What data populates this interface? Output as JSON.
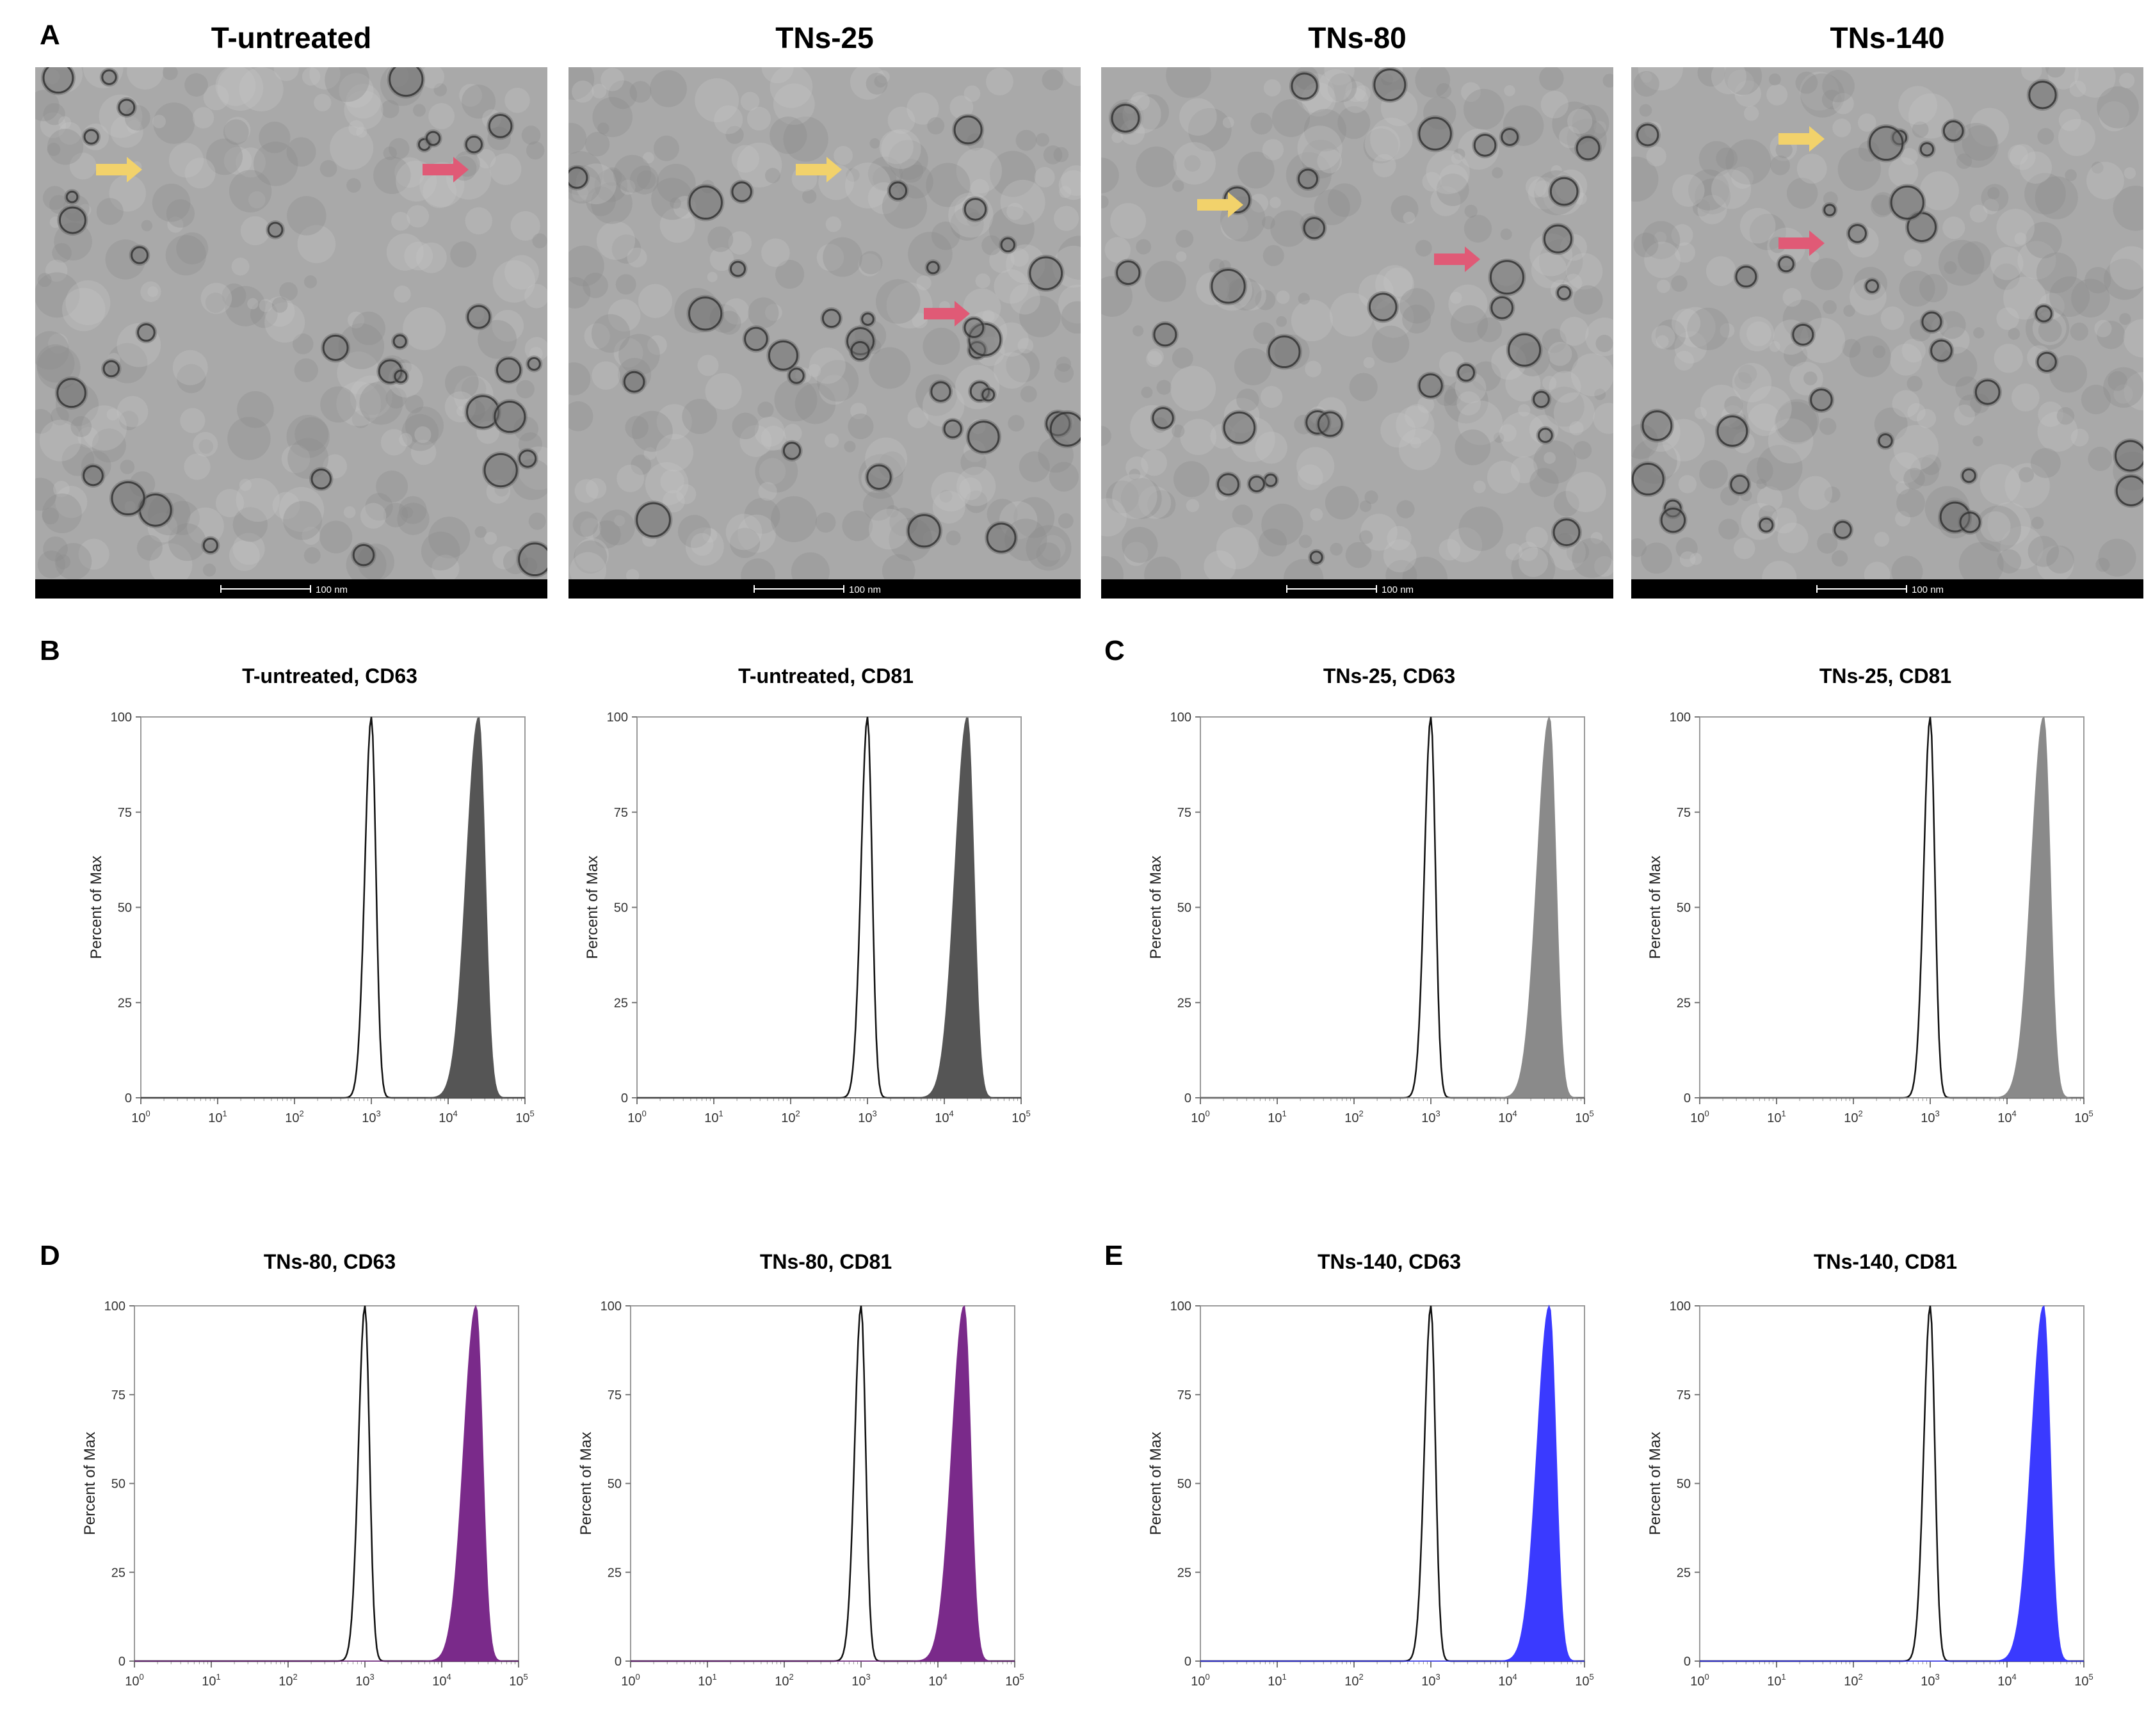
{
  "panel_letters": [
    "A",
    "B",
    "C",
    "D",
    "E"
  ],
  "tem": {
    "scale_label": "100 nm",
    "arrow_colors": {
      "yellow": "#f2d26b",
      "pink": "#e05a76"
    },
    "panels": [
      {
        "title": "T-untreated"
      },
      {
        "title": "TNs-25"
      },
      {
        "title": "TNs-80"
      },
      {
        "title": "TNs-140"
      }
    ]
  },
  "chart_data": [
    {
      "type": "area",
      "title": "T-untreated, CD63",
      "ylabel": "Percent of Max",
      "x_scale": "log",
      "xlim": [
        1,
        100000
      ],
      "ylim": [
        0,
        100
      ],
      "yticks": [
        0,
        25,
        50,
        75,
        100
      ],
      "xticks": [
        "10^0",
        "10^1",
        "10^2",
        "10^3",
        "10^4",
        "10^5"
      ],
      "series": [
        {
          "role": "control",
          "peak": 1000,
          "fill": "none"
        },
        {
          "role": "sample",
          "peak": 25000,
          "fill": "#555555"
        }
      ]
    },
    {
      "type": "area",
      "title": "T-untreated, CD81",
      "ylabel": "Percent of Max",
      "x_scale": "log",
      "xlim": [
        1,
        100000
      ],
      "ylim": [
        0,
        100
      ],
      "yticks": [
        0,
        25,
        50,
        75,
        100
      ],
      "xticks": [
        "10^0",
        "10^1",
        "10^2",
        "10^3",
        "10^4",
        "10^5"
      ],
      "series": [
        {
          "role": "control",
          "peak": 1000,
          "fill": "none"
        },
        {
          "role": "sample",
          "peak": 20000,
          "fill": "#555555"
        }
      ]
    },
    {
      "type": "area",
      "title": "TNs-25, CD63",
      "ylabel": "Percent of Max",
      "x_scale": "log",
      "xlim": [
        1,
        100000
      ],
      "ylim": [
        0,
        100
      ],
      "yticks": [
        0,
        25,
        50,
        75,
        100
      ],
      "xticks": [
        "10^0",
        "10^1",
        "10^2",
        "10^3",
        "10^4",
        "10^5"
      ],
      "series": [
        {
          "role": "control",
          "peak": 1000,
          "fill": "none"
        },
        {
          "role": "sample",
          "peak": 35000,
          "fill": "#8a8a8a"
        }
      ]
    },
    {
      "type": "area",
      "title": "TNs-25, CD81",
      "ylabel": "Percent of Max",
      "x_scale": "log",
      "xlim": [
        1,
        100000
      ],
      "ylim": [
        0,
        100
      ],
      "yticks": [
        0,
        25,
        50,
        75,
        100
      ],
      "xticks": [
        "10^0",
        "10^1",
        "10^2",
        "10^3",
        "10^4",
        "10^5"
      ],
      "series": [
        {
          "role": "control",
          "peak": 1000,
          "fill": "none"
        },
        {
          "role": "sample",
          "peak": 30000,
          "fill": "#8a8a8a"
        }
      ]
    },
    {
      "type": "area",
      "title": "TNs-80, CD63",
      "ylabel": "Percent of Max",
      "x_scale": "log",
      "xlim": [
        1,
        100000
      ],
      "ylim": [
        0,
        100
      ],
      "yticks": [
        0,
        25,
        50,
        75,
        100
      ],
      "xticks": [
        "10^0",
        "10^1",
        "10^2",
        "10^3",
        "10^4",
        "10^5"
      ],
      "series": [
        {
          "role": "control",
          "peak": 1000,
          "fill": "none"
        },
        {
          "role": "sample",
          "peak": 28000,
          "fill": "#7a2a8a"
        }
      ]
    },
    {
      "type": "area",
      "title": "TNs-80, CD81",
      "ylabel": "Percent of Max",
      "x_scale": "log",
      "xlim": [
        1,
        100000
      ],
      "ylim": [
        0,
        100
      ],
      "yticks": [
        0,
        25,
        50,
        75,
        100
      ],
      "xticks": [
        "10^0",
        "10^1",
        "10^2",
        "10^3",
        "10^4",
        "10^5"
      ],
      "series": [
        {
          "role": "control",
          "peak": 1000,
          "fill": "none"
        },
        {
          "role": "sample",
          "peak": 22000,
          "fill": "#7a2a8a"
        }
      ]
    },
    {
      "type": "area",
      "title": "TNs-140, CD63",
      "ylabel": "Percent of Max",
      "x_scale": "log",
      "xlim": [
        1,
        100000
      ],
      "ylim": [
        0,
        100
      ],
      "yticks": [
        0,
        25,
        50,
        75,
        100
      ],
      "xticks": [
        "10^0",
        "10^1",
        "10^2",
        "10^3",
        "10^4",
        "10^5"
      ],
      "series": [
        {
          "role": "control",
          "peak": 1000,
          "fill": "none"
        },
        {
          "role": "sample",
          "peak": 35000,
          "fill": "#3a3aff"
        }
      ]
    },
    {
      "type": "area",
      "title": "TNs-140, CD81",
      "ylabel": "Percent of Max",
      "x_scale": "log",
      "xlim": [
        1,
        100000
      ],
      "ylim": [
        0,
        100
      ],
      "yticks": [
        0,
        25,
        50,
        75,
        100
      ],
      "xticks": [
        "10^0",
        "10^1",
        "10^2",
        "10^3",
        "10^4",
        "10^5"
      ],
      "series": [
        {
          "role": "control",
          "peak": 1000,
          "fill": "none"
        },
        {
          "role": "sample",
          "peak": 30000,
          "fill": "#3a3aff"
        }
      ]
    }
  ]
}
